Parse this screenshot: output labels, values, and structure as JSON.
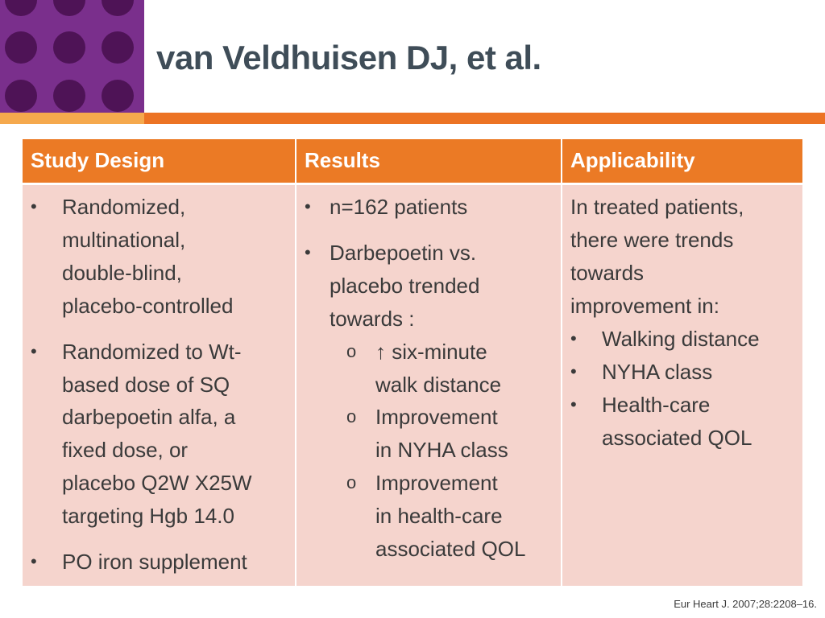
{
  "slide": {
    "title": "van Veldhuisen DJ, et al.",
    "citation": "Eur Heart J. 2007;28:2208–16.",
    "colors": {
      "accent_orange": "#eb7a25",
      "purple": "#7a2f8c",
      "dark_purple_dots": "#4e1356",
      "cell_background": "#f5d4cd",
      "title_text": "#3f4d58"
    }
  },
  "table": {
    "headers": [
      "Study Design",
      "Results",
      "Applicability"
    ],
    "study_design": {
      "items": [
        [
          "Randomized,",
          "multinational,",
          "double-blind,",
          "placebo-controlled"
        ],
        [
          "Randomized to Wt-",
          "based dose of SQ",
          "darbepoetin alfa, a",
          "fixed dose, or",
          "placebo Q2W X25W",
          "targeting Hgb 14.0"
        ],
        [
          "PO iron supplement"
        ]
      ]
    },
    "results": {
      "items": [
        [
          "n=162 patients"
        ],
        [
          "Darbepoetin vs.",
          "placebo trended",
          "towards :"
        ]
      ],
      "subitems": [
        [
          "↑ six-minute",
          "walk distance"
        ],
        [
          "Improvement",
          "in NYHA class"
        ],
        [
          "Improvement",
          "in health-care",
          "associated QOL"
        ]
      ]
    },
    "applicability": {
      "intro": [
        "In treated patients,",
        "there were trends",
        "towards",
        "improvement in:"
      ],
      "items": [
        [
          "Walking distance"
        ],
        [
          "NYHA class"
        ],
        [
          "Health-care",
          "associated QOL"
        ]
      ]
    },
    "bullet_symbol": "•",
    "sub_bullet_symbol": "o"
  }
}
